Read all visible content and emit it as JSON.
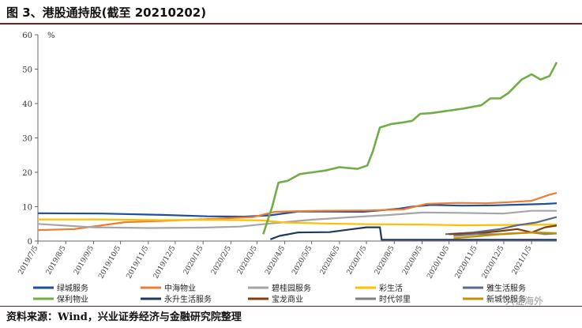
{
  "header": {
    "title": "图 3、港股通持股(截至 20210202)"
  },
  "footer": {
    "source": "资料来源：Wind，兴业证券经济与金融研究院整理",
    "watermark": "兴证海外"
  },
  "chart_data": {
    "type": "line",
    "ylabel": "%",
    "ylim": [
      0,
      60
    ],
    "yticks": [
      0,
      10,
      20,
      30,
      40,
      50,
      60
    ],
    "xlim": [
      "2019-07-05",
      "2021-02-02"
    ],
    "xtick_labels": [
      "2019/7/5",
      "2019/8/5",
      "2019/9/5",
      "2019/10/5",
      "2019/11/5",
      "2019/12/5",
      "2020/1/5",
      "2020/2/5",
      "2020/3/5",
      "2020/4/5",
      "2020/5/5",
      "2020/6/5",
      "2020/7/5",
      "2020/8/5",
      "2020/9/5",
      "2020/10/5",
      "2020/11/5",
      "2020/12/5",
      "2021/1/5"
    ],
    "grid": false,
    "legend_position": "bottom",
    "series": [
      {
        "name": "绿城服务",
        "color": "#1f4e9c",
        "x": [
          "2019-07-05",
          "2019-09-15",
          "2019-11-20",
          "2020-01-10",
          "2020-02-20",
          "2020-03-20",
          "2020-04-20",
          "2020-05-20",
          "2020-07-01",
          "2020-08-10",
          "2020-08-25",
          "2020-09-15",
          "2020-10-20",
          "2020-11-25",
          "2020-12-25",
          "2021-01-20",
          "2021-02-02"
        ],
        "y": [
          8.1,
          8.0,
          7.6,
          7.2,
          7.1,
          7.5,
          8.6,
          8.6,
          8.5,
          9.4,
          10.0,
          10.5,
          10.3,
          10.4,
          10.6,
          10.8,
          11.0
        ]
      },
      {
        "name": "中海物业",
        "color": "#ed7d31",
        "x": [
          "2019-07-05",
          "2019-08-15",
          "2019-10-10",
          "2019-12-05",
          "2020-01-20",
          "2020-03-01",
          "2020-03-25",
          "2020-05-10",
          "2020-07-05",
          "2020-08-15",
          "2020-09-10",
          "2020-10-15",
          "2020-11-15",
          "2020-12-10",
          "2021-01-05",
          "2021-01-25",
          "2021-02-02"
        ],
        "y": [
          3.2,
          3.5,
          5.5,
          6.0,
          6.5,
          7.0,
          8.5,
          8.8,
          8.9,
          9.2,
          10.8,
          11.1,
          11.0,
          11.3,
          11.7,
          13.5,
          14.0
        ]
      },
      {
        "name": "碧桂园服务",
        "color": "#a5a5a5",
        "x": [
          "2019-07-05",
          "2019-09-05",
          "2019-11-05",
          "2020-01-05",
          "2020-02-15",
          "2020-03-15",
          "2020-05-05",
          "2020-06-20",
          "2020-08-01",
          "2020-09-05",
          "2020-10-15",
          "2020-12-05",
          "2021-01-05",
          "2021-02-02"
        ],
        "y": [
          5.0,
          4.0,
          3.8,
          3.9,
          4.2,
          5.0,
          6.2,
          7.0,
          7.6,
          8.3,
          8.2,
          8.0,
          8.8,
          8.8
        ]
      },
      {
        "name": "彩生活",
        "color": "#ffc000",
        "x": [
          "2019-07-05",
          "2019-09-05",
          "2019-11-20",
          "2020-01-20",
          "2020-03-10",
          "2020-04-05",
          "2020-05-20",
          "2020-07-05",
          "2020-09-05",
          "2020-10-20",
          "2020-12-05",
          "2021-02-02"
        ],
        "y": [
          6.3,
          6.3,
          6.1,
          6.2,
          6.0,
          5.4,
          5.1,
          4.9,
          4.8,
          4.6,
          4.7,
          4.8
        ]
      },
      {
        "name": "雅生活服务",
        "color": "#5b6b8c",
        "x": [
          "2020-10-01",
          "2020-11-01",
          "2020-12-01",
          "2020-12-20",
          "2021-01-10",
          "2021-02-02"
        ],
        "y": [
          2.0,
          2.5,
          3.5,
          4.6,
          5.4,
          7.0
        ]
      },
      {
        "name": "保利物业",
        "color": "#70ad47",
        "x": [
          "2020-03-12",
          "2020-03-22",
          "2020-03-29",
          "2020-04-08",
          "2020-04-22",
          "2020-05-06",
          "2020-05-20",
          "2020-06-05",
          "2020-06-25",
          "2020-07-06",
          "2020-07-12",
          "2020-07-20",
          "2020-08-01",
          "2020-08-15",
          "2020-08-25",
          "2020-09-03",
          "2020-09-15",
          "2020-10-20",
          "2020-11-10",
          "2020-11-20",
          "2020-12-01",
          "2020-12-10",
          "2020-12-25",
          "2021-01-05",
          "2021-01-15",
          "2021-01-25",
          "2021-02-02"
        ],
        "y": [
          2.0,
          10.0,
          17.0,
          17.5,
          19.5,
          20.0,
          20.5,
          21.5,
          21.0,
          22.0,
          26.0,
          33.0,
          34.0,
          34.5,
          35.0,
          37.0,
          37.2,
          38.5,
          39.5,
          41.5,
          41.5,
          43.0,
          47.0,
          48.5,
          47.0,
          48.0,
          52.0
        ]
      },
      {
        "name": "永升生活服务",
        "color": "#1f3864",
        "x": [
          "2020-03-20",
          "2020-03-30",
          "2020-04-20",
          "2020-05-25",
          "2020-06-20",
          "2020-07-05",
          "2020-07-20",
          "2020-07-22",
          "2021-02-02"
        ],
        "y": [
          0.5,
          1.5,
          2.5,
          2.6,
          3.5,
          4.0,
          4.0,
          0.4,
          0.4
        ]
      },
      {
        "name": "宝龙商业",
        "color": "#843c0c",
        "x": [
          "2020-10-05",
          "2020-11-05",
          "2020-12-05",
          "2020-12-20",
          "2021-01-05",
          "2021-01-20",
          "2021-02-02"
        ],
        "y": [
          2.0,
          2.2,
          3.0,
          3.5,
          2.5,
          4.0,
          4.5
        ]
      },
      {
        "name": "时代邻里",
        "color": "#7f7f7f",
        "x": [
          "2020-10-10",
          "2020-11-05",
          "2020-12-05",
          "2021-01-05",
          "2021-01-20",
          "2021-02-02"
        ],
        "y": [
          1.5,
          2.0,
          2.0,
          2.5,
          2.0,
          2.2
        ]
      },
      {
        "name": "新城悦服务",
        "color": "#bf9000",
        "x": [
          "2020-10-10",
          "2020-11-10",
          "2020-12-10",
          "2021-01-10",
          "2021-02-02"
        ],
        "y": [
          0.8,
          1.5,
          2.2,
          2.5,
          2.3
        ]
      }
    ]
  }
}
